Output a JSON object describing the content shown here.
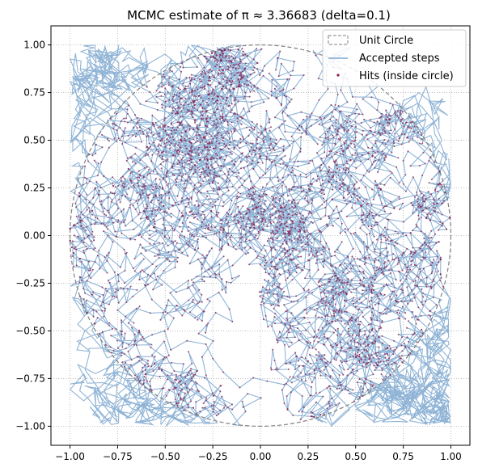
{
  "chart_data": {
    "type": "scatter",
    "title": "MCMC estimate of π ≈ 3.36683 (delta=0.1)",
    "xlabel": "",
    "ylabel": "",
    "xlim": [
      -1.1,
      1.1
    ],
    "ylim": [
      -1.1,
      1.1
    ],
    "grid": true,
    "grid_style": "dotted",
    "legend_position": "top-right",
    "xticks": [
      "−1.00",
      "−0.75",
      "−0.50",
      "−0.25",
      "0.00",
      "0.25",
      "0.50",
      "0.75",
      "1.00"
    ],
    "yticks": [
      "−1.00",
      "−0.75",
      "−0.50",
      "−0.25",
      "0.00",
      "0.25",
      "0.50",
      "0.75",
      "1.00"
    ],
    "series": [
      {
        "name": "Unit Circle",
        "kind": "circle",
        "center": [
          0,
          0
        ],
        "radius": 1,
        "color": "#808080",
        "style": "dashed"
      },
      {
        "name": "Accepted steps",
        "kind": "random-walk-path",
        "step_size": 0.1,
        "bounds": [
          -1,
          1
        ],
        "color": "#7ca7cf"
      },
      {
        "name": "Hits (inside circle)",
        "kind": "points",
        "color": "#8b1a4a",
        "condition": "x² + y² ≤ 1"
      }
    ]
  }
}
